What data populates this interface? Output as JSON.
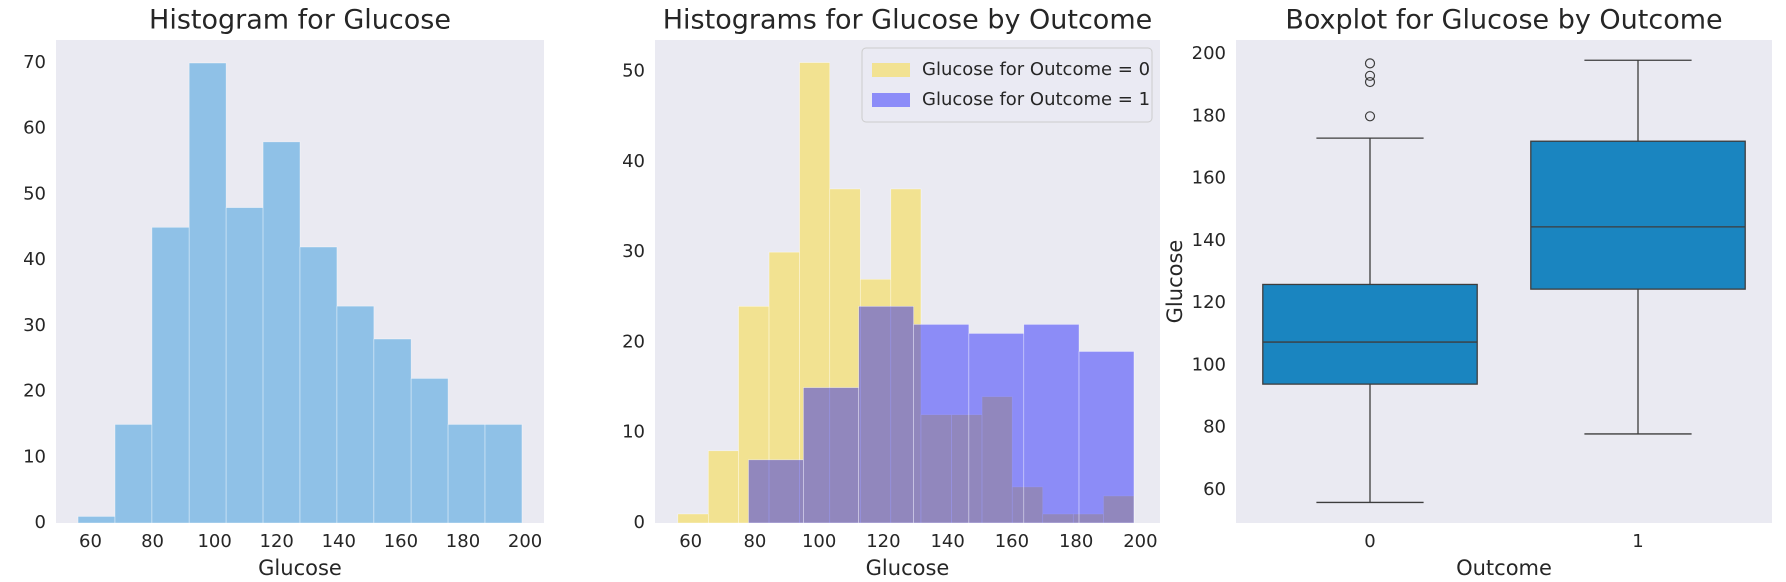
{
  "chart_data": [
    {
      "type": "histogram",
      "title": "Histogram for Glucose",
      "xlabel": "Glucose",
      "bins": [
        56,
        67.9,
        79.8,
        91.8,
        103.7,
        115.6,
        127.5,
        139.4,
        151.3,
        163.3,
        175.2,
        187.1,
        199
      ],
      "values": [
        1,
        15,
        45,
        70,
        48,
        58,
        42,
        33,
        28,
        22,
        15,
        15
      ],
      "color": "#3498db",
      "alpha": 0.5,
      "xlim": [
        48.9,
        206.1
      ],
      "ylim": [
        0,
        73.5
      ],
      "xticks": [
        60,
        80,
        100,
        120,
        140,
        160,
        180,
        200
      ],
      "yticks": [
        0,
        10,
        20,
        30,
        40,
        50,
        60,
        70
      ],
      "grid": false
    },
    {
      "type": "histogram",
      "title": "Histograms for Glucose by Outcome",
      "xlabel": "Glucose",
      "series": [
        {
          "name": "Glucose for Outcome = 0",
          "color": "gold",
          "bins": [
            56,
            65.5,
            74.9,
            84.4,
            93.9,
            103.3,
            112.8,
            122.3,
            131.7,
            141.2,
            150.7,
            160.1,
            169.6,
            179.1,
            188.5,
            198
          ],
          "values": [
            1,
            8,
            24,
            30,
            51,
            37,
            27,
            37,
            12,
            12,
            14,
            4,
            1,
            1,
            3
          ]
        },
        {
          "name": "Glucose for Outcome = 1",
          "color": "blue",
          "bins": [
            78,
            95.1,
            112.3,
            129.4,
            146.6,
            163.7,
            180.9,
            198
          ],
          "values": [
            7,
            15,
            24,
            22,
            21,
            22,
            19
          ]
        }
      ],
      "alpha": 0.4,
      "legend": "upper right",
      "xlim": [
        48.9,
        206.1
      ],
      "ylim": [
        0,
        53.5
      ],
      "xticks": [
        60,
        80,
        100,
        120,
        140,
        160,
        180,
        200
      ],
      "yticks": [
        0,
        10,
        20,
        30,
        40,
        50
      ],
      "grid": false
    },
    {
      "type": "box",
      "title": "Boxplot for Glucose by Outcome",
      "xlabel": "Outcome",
      "ylabel": "Glucose",
      "categories": [
        "0",
        "1"
      ],
      "boxes": [
        {
          "whislo": 56,
          "q1": 94,
          "med": 107.5,
          "q3": 126,
          "whishi": 173,
          "fliers": [
            180,
            191,
            193,
            197
          ]
        },
        {
          "whislo": 78,
          "q1": 124.5,
          "med": 144.5,
          "q3": 172,
          "whishi": 198,
          "fliers": []
        }
      ],
      "color": "#1a85c0",
      "ylim": [
        49.4,
        204.5
      ],
      "yticks": [
        60,
        80,
        100,
        120,
        140,
        160,
        180,
        200
      ],
      "grid": false
    }
  ]
}
